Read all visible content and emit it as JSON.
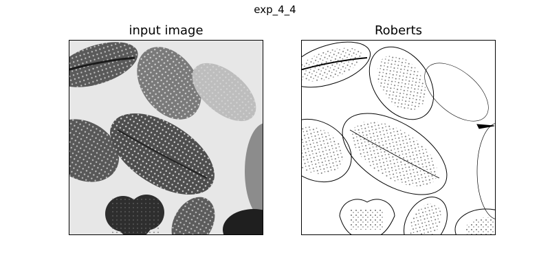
{
  "figure": {
    "suptitle": "exp_4_4"
  },
  "panels": [
    {
      "title": "input image",
      "content": "grayscale micrograph of pollen grains"
    },
    {
      "title": "Roberts",
      "content": "Roberts edge detection result"
    }
  ],
  "colors": {
    "background": "#ffffff",
    "axes_border": "#000000"
  }
}
